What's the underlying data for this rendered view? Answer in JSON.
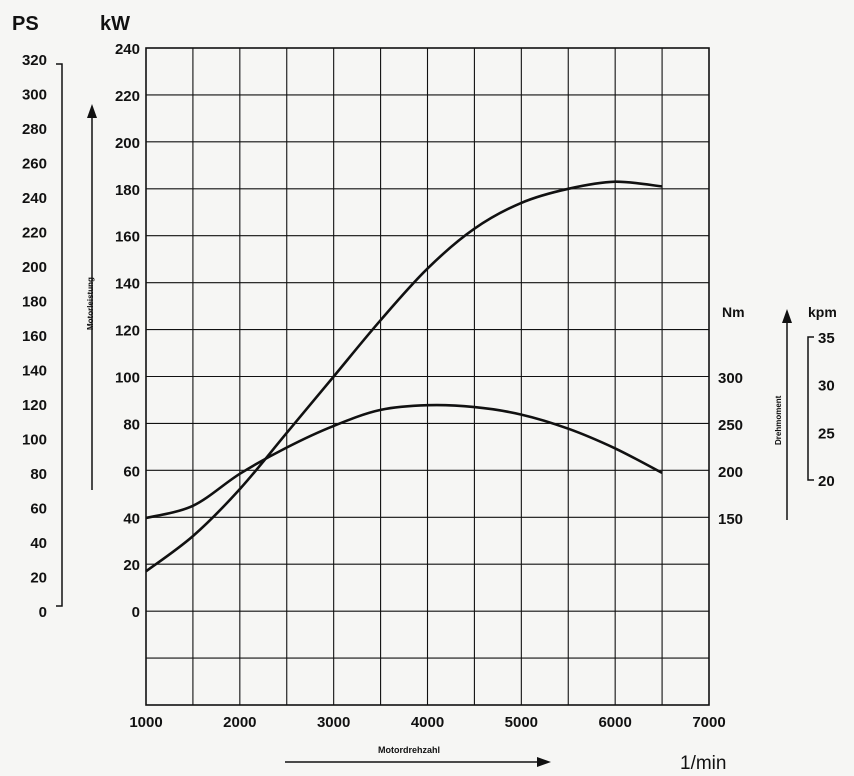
{
  "chart_data": {
    "type": "line",
    "units": {
      "ps": "PS",
      "kw": "kW",
      "nm": "Nm",
      "kpm": "kpm",
      "rpm": "1/min"
    },
    "ylabel_left": "Motorleistung",
    "ylabel_right": "Drehmoment",
    "xlabel": "Motordrehzahl",
    "x_ticks": [
      "1000",
      "2000",
      "3000",
      "4000",
      "5000",
      "6000",
      "7000"
    ],
    "kw_ticks": [
      "240",
      "220",
      "200",
      "180",
      "160",
      "140",
      "120",
      "100",
      "80",
      "60",
      "40",
      "20",
      "0"
    ],
    "ps_ticks": [
      "320",
      "300",
      "280",
      "260",
      "240",
      "220",
      "200",
      "180",
      "160",
      "140",
      "120",
      "100",
      "80",
      "60",
      "40",
      "20",
      "0"
    ],
    "nm_ticks": [
      "300",
      "250",
      "200",
      "150"
    ],
    "kpm_ticks": [
      "35",
      "30",
      "25",
      "20"
    ],
    "xlim": [
      1000,
      7000
    ],
    "ylim_kw": [
      -40,
      240
    ],
    "ylim_ps": [
      0,
      320
    ],
    "grid": true,
    "series": [
      {
        "curve": "power",
        "axis": "kW",
        "x": [
          1000,
          1500,
          2000,
          2500,
          3000,
          3500,
          4000,
          4500,
          5000,
          5500,
          6000,
          6500
        ],
        "y": [
          17,
          32,
          52,
          76,
          100,
          124,
          146,
          163,
          174,
          180,
          183,
          181
        ]
      },
      {
        "curve": "torque",
        "axis": "Nm",
        "x": [
          1000,
          1500,
          2000,
          2500,
          3000,
          3500,
          4000,
          4500,
          5000,
          5500,
          6000,
          6500
        ],
        "y": [
          150,
          163,
          197,
          225,
          248,
          265,
          270,
          268,
          260,
          245,
          224,
          198
        ]
      }
    ]
  }
}
